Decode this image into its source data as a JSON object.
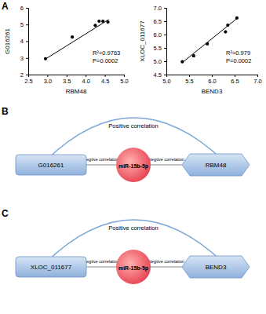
{
  "chart_data": [
    {
      "type": "scatter",
      "x_label": "RBM48",
      "y_label": "G016261",
      "x": [
        2.95,
        3.65,
        4.25,
        4.35,
        4.45,
        4.58
      ],
      "values": [
        2.95,
        4.25,
        4.95,
        5.2,
        5.2,
        5.15
      ],
      "trend_line": {
        "x": [
          2.95,
          4.6
        ],
        "values": [
          2.93,
          5.3
        ]
      },
      "annotations": [
        "R²=0.9763",
        "P=0.0002"
      ],
      "xlim": [
        2.5,
        5.0
      ],
      "xticks": [
        2.5,
        {
          "value": 3,
          "label": "3.0"
        },
        3.5,
        {
          "value": 4,
          "label": "4.0"
        },
        4.5,
        {
          "value": 5,
          "label": "5.0"
        }
      ],
      "ylim": [
        2,
        6
      ],
      "yticks": [
        2,
        3,
        4,
        5,
        6
      ],
      "color": "#000000",
      "marker": "circle"
    },
    {
      "type": "scatter",
      "x_label": "BEND3",
      "y_label": "XLOC_011677",
      "x": [
        5.35,
        5.6,
        5.9,
        6.3,
        6.35,
        6.55
      ],
      "values": [
        4.98,
        5.2,
        5.65,
        6.1,
        6.35,
        6.62
      ],
      "trend_line": {
        "x": [
          5.35,
          6.55
        ],
        "values": [
          4.95,
          6.6
        ]
      },
      "annotations": [
        "R²=0.979",
        "P=0.0002"
      ],
      "xlim": [
        5.0,
        7.0
      ],
      "xticks": [
        {
          "value": 5,
          "label": "5.0"
        },
        5.5,
        {
          "value": 6,
          "label": "6.0"
        },
        6.5,
        {
          "value": 7,
          "label": "7.0"
        }
      ],
      "ylim": [
        4.5,
        7.0
      ],
      "yticks": [
        4.5,
        {
          "value": 5,
          "label": "5.0"
        },
        5.5,
        {
          "value": 6,
          "label": "6.0"
        },
        6.5,
        {
          "value": 7,
          "label": "7.0"
        }
      ],
      "color": "#000000",
      "marker": "circle"
    }
  ],
  "panel_labels": [
    "A",
    "B",
    "C"
  ],
  "diagrams": [
    {
      "arc_label": "Positive correlation",
      "left": "G016261",
      "center": "miR-15b-5p",
      "right": "RBM48",
      "left_edge": "Negtive correlation",
      "right_edge": "Negtive correlation"
    },
    {
      "arc_label": "Positive correlation",
      "left": "XLOC_011677",
      "center": "miR-15b-5p",
      "right": "BEND3",
      "left_edge": "Negtive correlation",
      "right_edge": "Negtive correlation"
    }
  ]
}
